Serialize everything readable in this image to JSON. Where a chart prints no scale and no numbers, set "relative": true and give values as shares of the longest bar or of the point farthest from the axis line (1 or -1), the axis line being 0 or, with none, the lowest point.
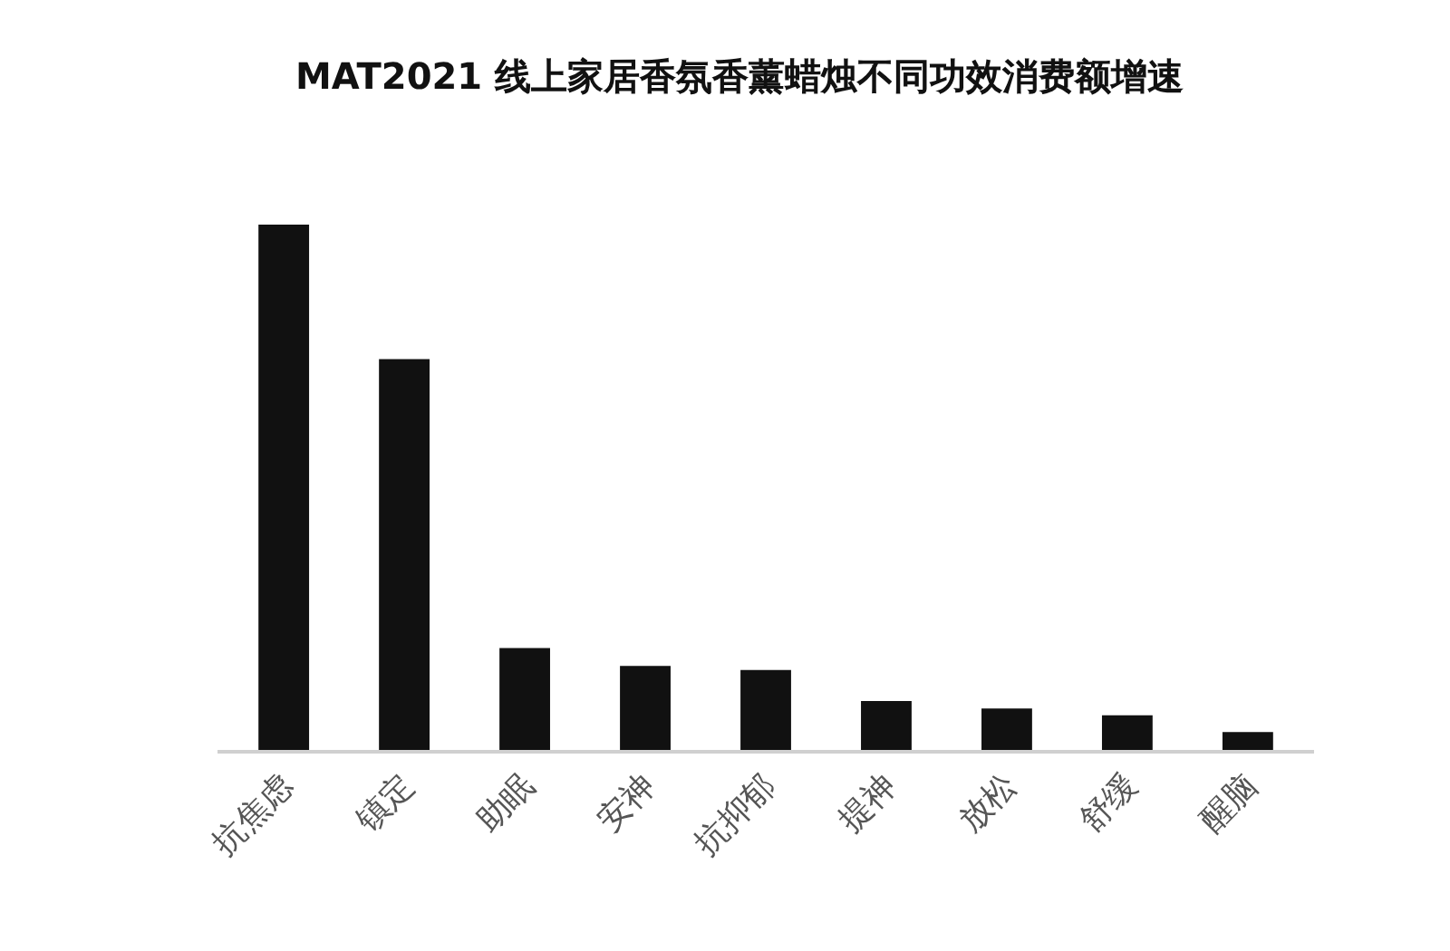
{
  "chart_data": {
    "type": "bar",
    "title": "MAT2021 线上家居香氛香薰蜡烛不同功效消费额增速",
    "categories": [
      "抗焦虑",
      "镇定",
      "助眠",
      "安神",
      "抗抑郁",
      "提神",
      "放松",
      "舒缓",
      "醒脑"
    ],
    "values": [
      1,
      0.744,
      0.194,
      0.16,
      0.152,
      0.093,
      0.079,
      0.066,
      0.034
    ],
    "color": "#111111",
    "relative": true
  }
}
